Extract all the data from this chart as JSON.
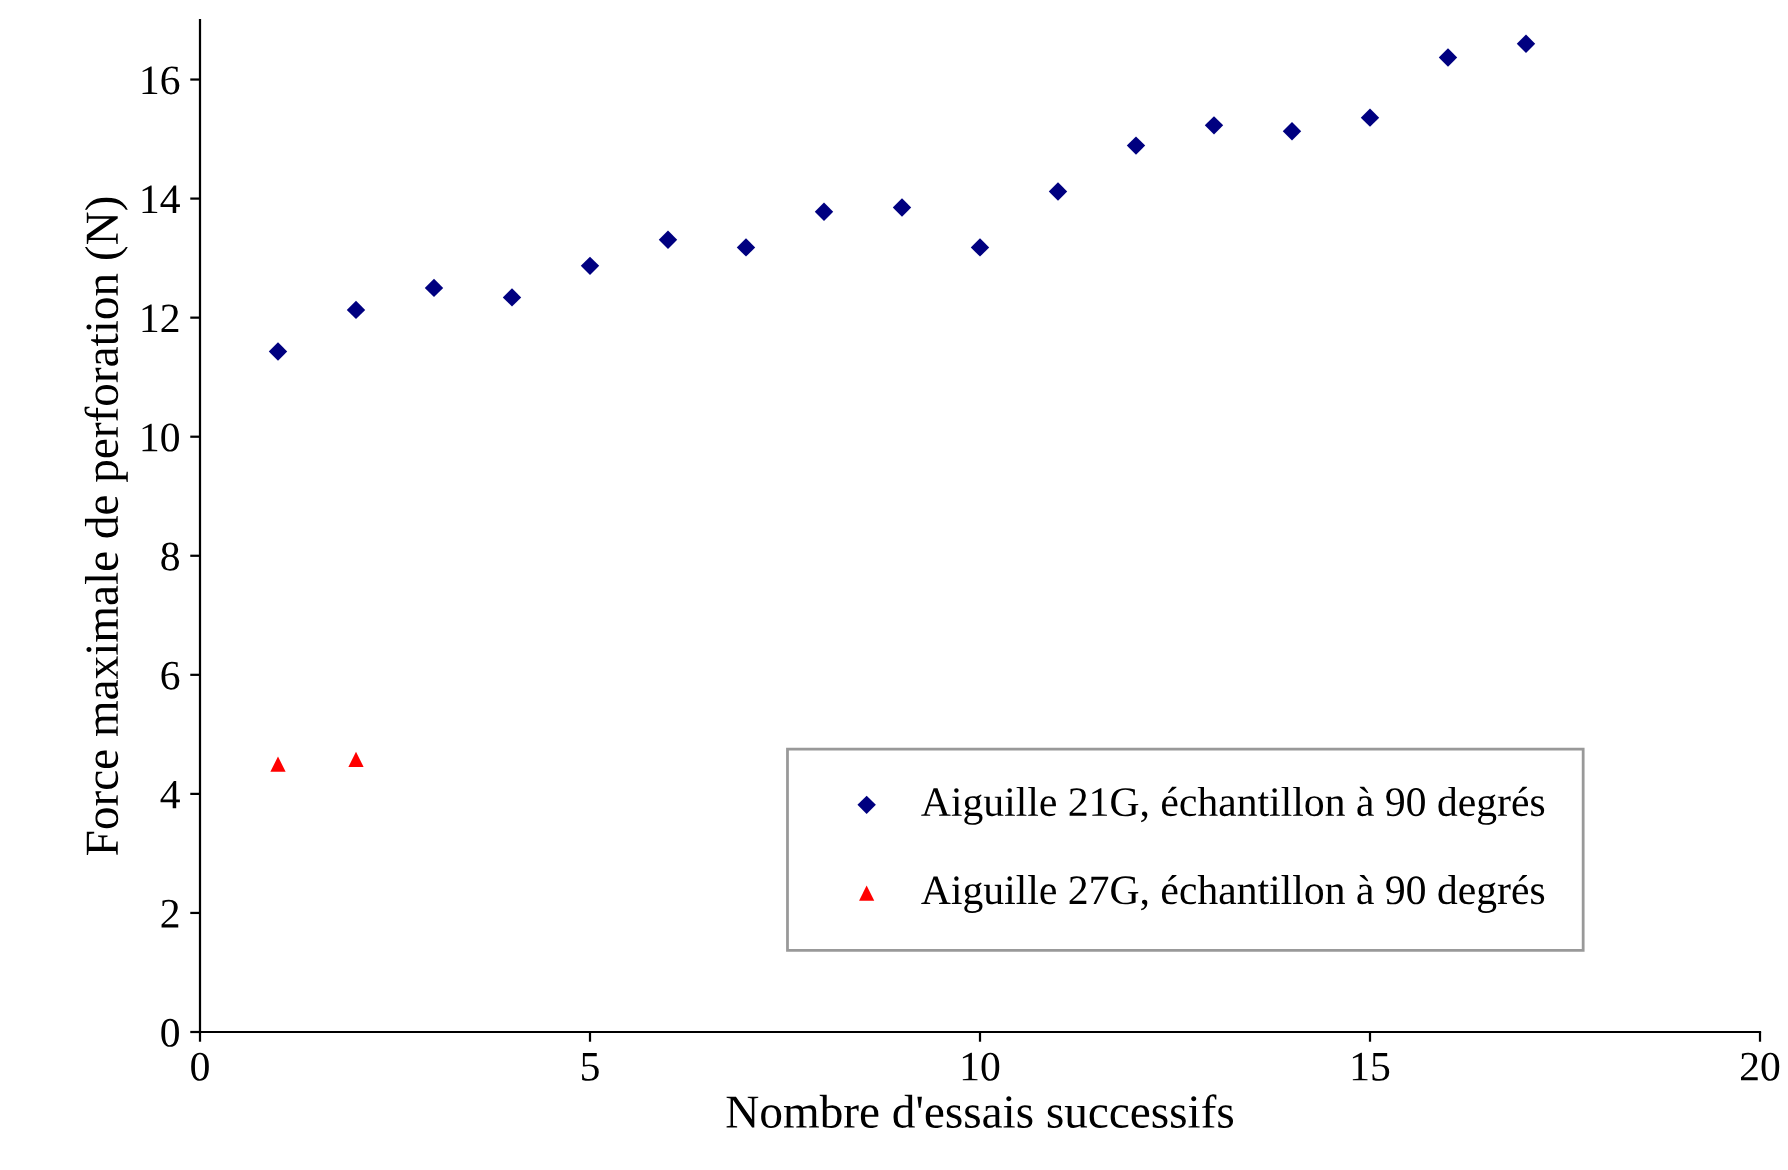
{
  "chart_data": {
    "type": "scatter",
    "xlabel": "Nombre d'essais successifs",
    "ylabel": "Force maximale de perforation (N)",
    "series": [
      {
        "name": "Aiguille 21G, échantillon à 90 degrés",
        "color": "#000080",
        "marker": "diamond",
        "x": [
          1,
          2,
          3,
          4,
          5,
          6,
          7,
          8,
          9,
          10,
          11,
          12,
          13,
          14,
          15,
          16,
          17
        ],
        "values": [
          11.43,
          12.13,
          12.5,
          12.34,
          12.87,
          13.31,
          13.18,
          13.78,
          13.85,
          13.18,
          14.12,
          14.89,
          15.23,
          15.13,
          15.36,
          16.37,
          16.6
        ]
      },
      {
        "name": "Aiguille 27G, échantillon à 90 degrés",
        "color": "#ff0000",
        "marker": "triangle",
        "x": [
          1,
          2
        ],
        "values": [
          4.5,
          4.58
        ]
      }
    ],
    "xlim": [
      0,
      20
    ],
    "xticks": [
      0,
      5,
      10,
      15,
      20
    ],
    "ylim": [
      0,
      17
    ],
    "yticks": [
      0,
      2,
      4,
      6,
      8,
      10,
      12,
      14,
      16
    ],
    "grid": false,
    "legend": "bottom right"
  }
}
